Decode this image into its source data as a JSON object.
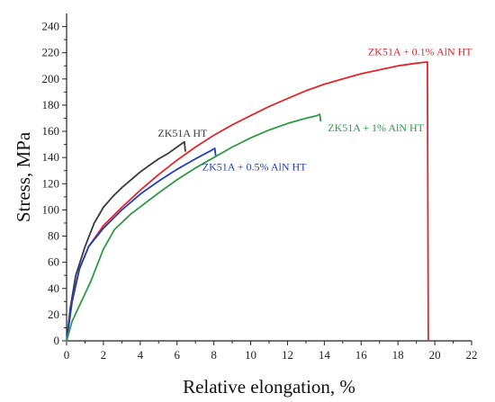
{
  "chart_data": {
    "type": "line",
    "xlabel": "Relative elongation, %",
    "ylabel": "Stress, MPa",
    "xlim": [
      0,
      22
    ],
    "ylim": [
      0,
      250
    ],
    "xticks": [
      0,
      2,
      4,
      6,
      8,
      10,
      12,
      14,
      16,
      18,
      20,
      22
    ],
    "yticks": [
      0,
      20,
      40,
      60,
      80,
      100,
      120,
      140,
      160,
      180,
      200,
      220,
      240
    ],
    "grid": false,
    "series": [
      {
        "name": "ZK51A HT",
        "color": "#3a3a3a",
        "label_at": [
          6.3,
          156
        ],
        "points": [
          [
            0,
            0
          ],
          [
            0.2,
            25
          ],
          [
            0.5,
            50
          ],
          [
            1,
            72
          ],
          [
            1.5,
            90
          ],
          [
            2,
            102
          ],
          [
            2.5,
            110
          ],
          [
            3,
            117
          ],
          [
            3.5,
            123
          ],
          [
            4,
            129
          ],
          [
            4.5,
            134
          ],
          [
            5,
            139
          ],
          [
            5.5,
            143
          ],
          [
            6,
            148
          ],
          [
            6.4,
            152
          ],
          [
            6.45,
            145
          ]
        ]
      },
      {
        "name": "ZK51A + 0.1% AlN HT",
        "color": "#e3262c",
        "label_at": [
          19.2,
          218
        ],
        "points": [
          [
            0,
            0
          ],
          [
            0.3,
            30
          ],
          [
            0.7,
            55
          ],
          [
            1.2,
            72
          ],
          [
            2,
            88
          ],
          [
            3,
            102
          ],
          [
            4,
            115
          ],
          [
            5,
            127
          ],
          [
            6,
            138
          ],
          [
            7,
            148
          ],
          [
            8,
            157
          ],
          [
            9,
            165
          ],
          [
            10,
            172
          ],
          [
            11,
            179
          ],
          [
            12,
            185
          ],
          [
            13,
            191
          ],
          [
            14,
            196
          ],
          [
            15,
            200
          ],
          [
            16,
            204
          ],
          [
            17,
            207
          ],
          [
            18,
            210
          ],
          [
            19,
            212
          ],
          [
            19.6,
            213
          ],
          [
            19.65,
            0
          ]
        ]
      },
      {
        "name": "ZK51A + 0.5% AlN HT",
        "color": "#1f3fc4",
        "label_at": [
          10.2,
          130
        ],
        "points": [
          [
            0,
            0
          ],
          [
            0.3,
            30
          ],
          [
            0.7,
            55
          ],
          [
            1.2,
            72
          ],
          [
            2,
            86
          ],
          [
            3,
            100
          ],
          [
            4,
            112
          ],
          [
            5,
            122
          ],
          [
            6,
            131
          ],
          [
            7,
            139
          ],
          [
            7.8,
            145
          ],
          [
            8.05,
            147
          ],
          [
            8.1,
            141
          ]
        ]
      },
      {
        "name": "ZK51A + 1% AlN HT",
        "color": "#2e9a46",
        "label_at": [
          16.8,
          160
        ],
        "points": [
          [
            0,
            0
          ],
          [
            0.3,
            15
          ],
          [
            0.8,
            30
          ],
          [
            1.3,
            45
          ],
          [
            2,
            70
          ],
          [
            2.6,
            85
          ],
          [
            3.5,
            97
          ],
          [
            5,
            113
          ],
          [
            6,
            123
          ],
          [
            7,
            132
          ],
          [
            8,
            140
          ],
          [
            9,
            148
          ],
          [
            10,
            155
          ],
          [
            11,
            161
          ],
          [
            12,
            166
          ],
          [
            13,
            170
          ],
          [
            13.6,
            172
          ],
          [
            13.75,
            173
          ],
          [
            13.8,
            168
          ]
        ]
      }
    ]
  }
}
